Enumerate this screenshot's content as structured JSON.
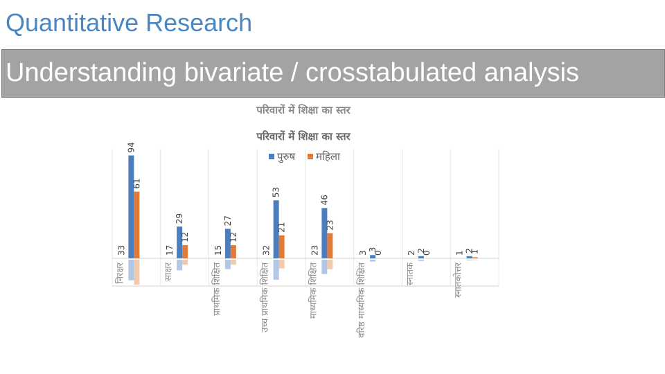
{
  "slide": {
    "title": "Quantitative Research",
    "subtitle": "Understanding bivariate / crosstabulated analysis"
  },
  "chart_data": {
    "type": "bar",
    "title": "परिवारों में शिक्षा का स्तर",
    "categories": [
      "निरक्षर",
      "साक्षर",
      "प्राथमिक शिक्षित",
      "उच्च प्राथमिक शिक्षित",
      "माध्यमिक शिक्षित",
      "वरिष्ठ माध्यमिक शिक्षित",
      "स्नातक",
      "स्नातकोत्तर"
    ],
    "series": [
      {
        "name": "पुरुष",
        "values": [
          94,
          29,
          27,
          53,
          46,
          3,
          2,
          2
        ],
        "color": "#4a7ebf"
      },
      {
        "name": "महिला",
        "values": [
          61,
          12,
          12,
          21,
          23,
          0,
          0,
          1
        ],
        "color": "#e07b39"
      }
    ],
    "reflection": {
      "series": [
        {
          "name": "पुरुष",
          "values": [
            33,
            17,
            15,
            32,
            23,
            3,
            2,
            1
          ]
        }
      ]
    },
    "ylim": [
      0,
      100
    ],
    "grid": true,
    "legend": "top-center"
  }
}
